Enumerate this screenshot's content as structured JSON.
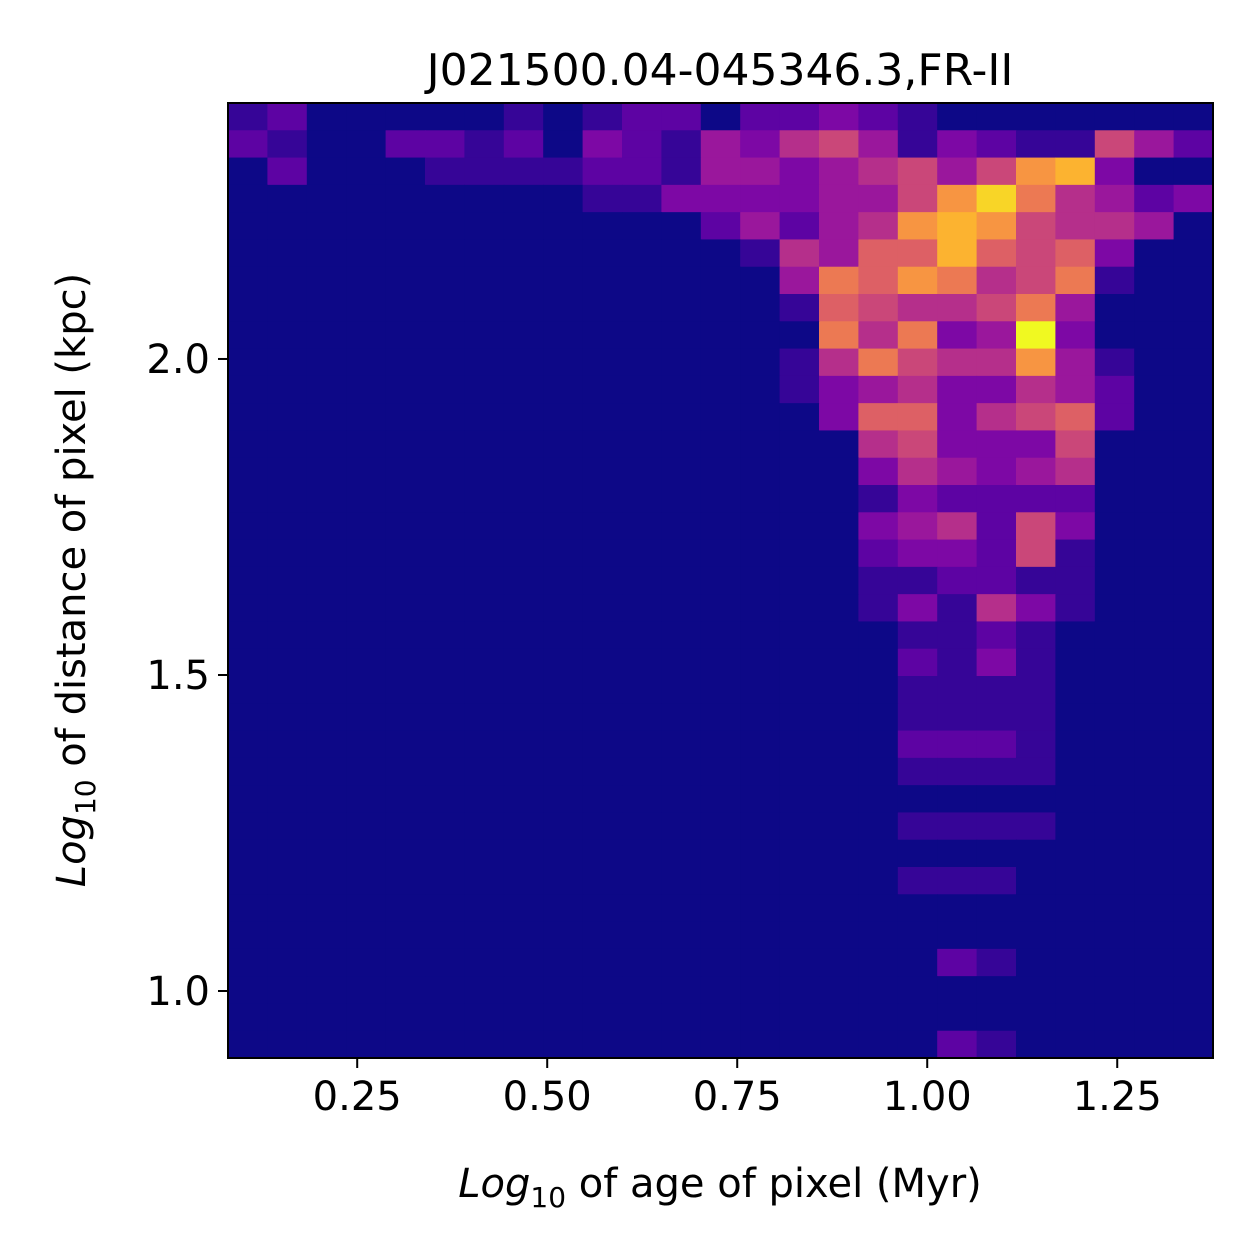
{
  "chart_data": {
    "type": "hist2d",
    "title": "J021500.04-045346.3,FR-II",
    "xlabel": [
      "Log",
      "10",
      " of age of pixel (Myr)"
    ],
    "ylabel": [
      "Log",
      "10",
      " of distance of pixel (kpc)"
    ],
    "colormap": "plasma",
    "zlim": [
      0,
      12
    ],
    "xlim": [
      0.08,
      1.376
    ],
    "ylim": [
      0.894,
      2.405
    ],
    "xticks": [
      0.25,
      {
        "value": 0.5,
        "label": "0.50"
      },
      {
        "value": 0.75,
        "label": "0.75"
      },
      {
        "value": 1,
        "label": "1.00"
      },
      1.25
    ],
    "yticks": [
      {
        "value": 1,
        "label": "1.0"
      },
      1.5,
      {
        "value": 2,
        "label": "2.0"
      }
    ],
    "values": [
      [
        1,
        2,
        0,
        0,
        0,
        0,
        0,
        1,
        0,
        1,
        2,
        2,
        0,
        2,
        2,
        3,
        2,
        1,
        0,
        0,
        0,
        0,
        0,
        0,
        0
      ],
      [
        2,
        1,
        0,
        0,
        2,
        2,
        1,
        2,
        0,
        3,
        2,
        1,
        4,
        3,
        5,
        6,
        4,
        1,
        3,
        2,
        1,
        1,
        6,
        4,
        2
      ],
      [
        0,
        2,
        0,
        0,
        0,
        1,
        1,
        1,
        1,
        2,
        2,
        1,
        4,
        4,
        3,
        4,
        5,
        6,
        4,
        6,
        9,
        10,
        3,
        0,
        0
      ],
      [
        0,
        0,
        0,
        0,
        0,
        0,
        0,
        0,
        0,
        1,
        1,
        3,
        3,
        3,
        3,
        4,
        4,
        6,
        9,
        11,
        8,
        5,
        4,
        2,
        3
      ],
      [
        0,
        0,
        0,
        0,
        0,
        0,
        0,
        0,
        0,
        0,
        0,
        0,
        2,
        4,
        2,
        4,
        5,
        9,
        10,
        9,
        6,
        5,
        5,
        4,
        0
      ],
      [
        0,
        0,
        0,
        0,
        0,
        0,
        0,
        0,
        0,
        0,
        0,
        0,
        0,
        1,
        5,
        4,
        7,
        7,
        10,
        7,
        6,
        7,
        3,
        0,
        0
      ],
      [
        0,
        0,
        0,
        0,
        0,
        0,
        0,
        0,
        0,
        0,
        0,
        0,
        0,
        0,
        4,
        8,
        7,
        9,
        8,
        5,
        6,
        8,
        1,
        0,
        0
      ],
      [
        0,
        0,
        0,
        0,
        0,
        0,
        0,
        0,
        0,
        0,
        0,
        0,
        0,
        0,
        1,
        7,
        6,
        5,
        5,
        6,
        8,
        4,
        0,
        0,
        0
      ],
      [
        0,
        0,
        0,
        0,
        0,
        0,
        0,
        0,
        0,
        0,
        0,
        0,
        0,
        0,
        0,
        8,
        5,
        8,
        3,
        4,
        12,
        3,
        0,
        0,
        0
      ],
      [
        0,
        0,
        0,
        0,
        0,
        0,
        0,
        0,
        0,
        0,
        0,
        0,
        0,
        0,
        1,
        5,
        8,
        6,
        5,
        5,
        9,
        4,
        1,
        0,
        0
      ],
      [
        0,
        0,
        0,
        0,
        0,
        0,
        0,
        0,
        0,
        0,
        0,
        0,
        0,
        0,
        1,
        3,
        4,
        5,
        3,
        3,
        5,
        4,
        2,
        0,
        0
      ],
      [
        0,
        0,
        0,
        0,
        0,
        0,
        0,
        0,
        0,
        0,
        0,
        0,
        0,
        0,
        0,
        3,
        7,
        7,
        3,
        5,
        6,
        7,
        2,
        0,
        0
      ],
      [
        0,
        0,
        0,
        0,
        0,
        0,
        0,
        0,
        0,
        0,
        0,
        0,
        0,
        0,
        0,
        0,
        5,
        6,
        3,
        3,
        3,
        6,
        0,
        0,
        0
      ],
      [
        0,
        0,
        0,
        0,
        0,
        0,
        0,
        0,
        0,
        0,
        0,
        0,
        0,
        0,
        0,
        0,
        3,
        5,
        4,
        3,
        4,
        5,
        0,
        0,
        0
      ],
      [
        0,
        0,
        0,
        0,
        0,
        0,
        0,
        0,
        0,
        0,
        0,
        0,
        0,
        0,
        0,
        0,
        1,
        3,
        2,
        2,
        2,
        2,
        0,
        0,
        0
      ],
      [
        0,
        0,
        0,
        0,
        0,
        0,
        0,
        0,
        0,
        0,
        0,
        0,
        0,
        0,
        0,
        0,
        3,
        4,
        5,
        2,
        6,
        3,
        0,
        0,
        0
      ],
      [
        0,
        0,
        0,
        0,
        0,
        0,
        0,
        0,
        0,
        0,
        0,
        0,
        0,
        0,
        0,
        0,
        2,
        3,
        3,
        2,
        6,
        1,
        0,
        0,
        0
      ],
      [
        0,
        0,
        0,
        0,
        0,
        0,
        0,
        0,
        0,
        0,
        0,
        0,
        0,
        0,
        0,
        0,
        1,
        1,
        2,
        2,
        1,
        1,
        0,
        0,
        0
      ],
      [
        0,
        0,
        0,
        0,
        0,
        0,
        0,
        0,
        0,
        0,
        0,
        0,
        0,
        0,
        0,
        0,
        1,
        3,
        1,
        5,
        3,
        1,
        0,
        0,
        0
      ],
      [
        0,
        0,
        0,
        0,
        0,
        0,
        0,
        0,
        0,
        0,
        0,
        0,
        0,
        0,
        0,
        0,
        0,
        1,
        1,
        2,
        1,
        0,
        0,
        0,
        0
      ],
      [
        0,
        0,
        0,
        0,
        0,
        0,
        0,
        0,
        0,
        0,
        0,
        0,
        0,
        0,
        0,
        0,
        0,
        2,
        1,
        3,
        1,
        0,
        0,
        0,
        0
      ],
      [
        0,
        0,
        0,
        0,
        0,
        0,
        0,
        0,
        0,
        0,
        0,
        0,
        0,
        0,
        0,
        0,
        0,
        1,
        1,
        1,
        1,
        0,
        0,
        0,
        0
      ],
      [
        0,
        0,
        0,
        0,
        0,
        0,
        0,
        0,
        0,
        0,
        0,
        0,
        0,
        0,
        0,
        0,
        0,
        1,
        1,
        1,
        1,
        0,
        0,
        0,
        0
      ],
      [
        0,
        0,
        0,
        0,
        0,
        0,
        0,
        0,
        0,
        0,
        0,
        0,
        0,
        0,
        0,
        0,
        0,
        2,
        2,
        2,
        1,
        0,
        0,
        0,
        0
      ],
      [
        0,
        0,
        0,
        0,
        0,
        0,
        0,
        0,
        0,
        0,
        0,
        0,
        0,
        0,
        0,
        0,
        0,
        1,
        1,
        1,
        1,
        0,
        0,
        0,
        0
      ],
      [
        0,
        0,
        0,
        0,
        0,
        0,
        0,
        0,
        0,
        0,
        0,
        0,
        0,
        0,
        0,
        0,
        0,
        0,
        0,
        0,
        0,
        0,
        0,
        0,
        0
      ],
      [
        0,
        0,
        0,
        0,
        0,
        0,
        0,
        0,
        0,
        0,
        0,
        0,
        0,
        0,
        0,
        0,
        0,
        1,
        1,
        1,
        1,
        0,
        0,
        0,
        0
      ],
      [
        0,
        0,
        0,
        0,
        0,
        0,
        0,
        0,
        0,
        0,
        0,
        0,
        0,
        0,
        0,
        0,
        0,
        0,
        0,
        0,
        0,
        0,
        0,
        0,
        0
      ],
      [
        0,
        0,
        0,
        0,
        0,
        0,
        0,
        0,
        0,
        0,
        0,
        0,
        0,
        0,
        0,
        0,
        0,
        1,
        1,
        1,
        0,
        0,
        0,
        0,
        0
      ],
      [
        0,
        0,
        0,
        0,
        0,
        0,
        0,
        0,
        0,
        0,
        0,
        0,
        0,
        0,
        0,
        0,
        0,
        0,
        0,
        0,
        0,
        0,
        0,
        0,
        0
      ],
      [
        0,
        0,
        0,
        0,
        0,
        0,
        0,
        0,
        0,
        0,
        0,
        0,
        0,
        0,
        0,
        0,
        0,
        0,
        0,
        0,
        0,
        0,
        0,
        0,
        0
      ],
      [
        0,
        0,
        0,
        0,
        0,
        0,
        0,
        0,
        0,
        0,
        0,
        0,
        0,
        0,
        0,
        0,
        0,
        0,
        2,
        1,
        0,
        0,
        0,
        0,
        0
      ],
      [
        0,
        0,
        0,
        0,
        0,
        0,
        0,
        0,
        0,
        0,
        0,
        0,
        0,
        0,
        0,
        0,
        0,
        0,
        0,
        0,
        0,
        0,
        0,
        0,
        0
      ],
      [
        0,
        0,
        0,
        0,
        0,
        0,
        0,
        0,
        0,
        0,
        0,
        0,
        0,
        0,
        0,
        0,
        0,
        0,
        0,
        0,
        0,
        0,
        0,
        0,
        0
      ],
      [
        0,
        0,
        0,
        0,
        0,
        0,
        0,
        0,
        0,
        0,
        0,
        0,
        0,
        0,
        0,
        0,
        0,
        0,
        2,
        1,
        0,
        0,
        0,
        0,
        0
      ]
    ]
  }
}
